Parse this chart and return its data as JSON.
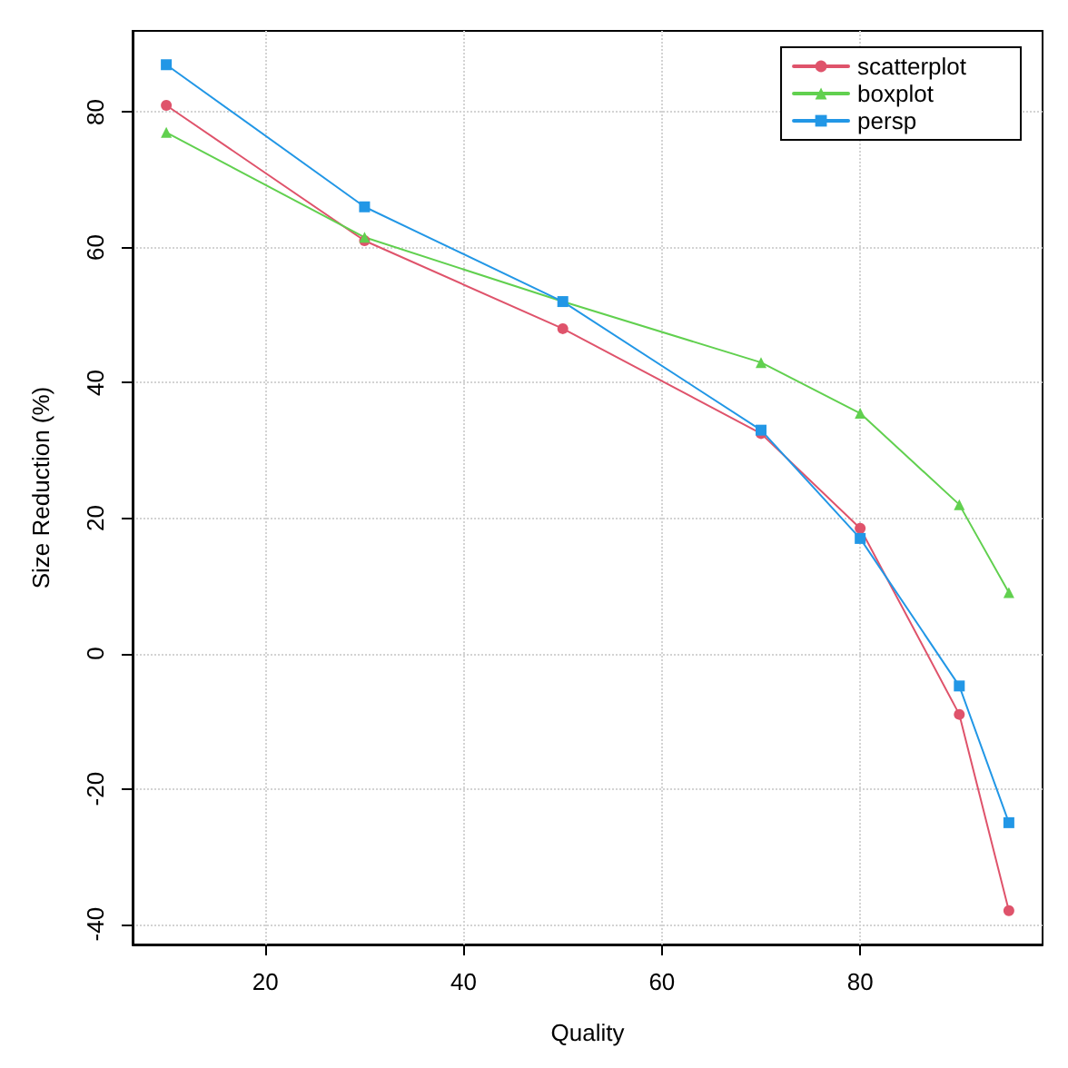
{
  "chart_data": {
    "type": "line",
    "xlabel": "Quality",
    "ylabel": "Size Reduction (%)",
    "xlim": [
      6.6,
      98.4
    ],
    "xticks": [
      20,
      40,
      60,
      80
    ],
    "ylim": [
      -43,
      92
    ],
    "yticks": [
      -40,
      -20,
      0,
      20,
      40,
      60,
      80
    ],
    "grid": true,
    "legend": "top right",
    "line_style": "solid",
    "series": [
      {
        "name": "scatterplot",
        "color": "#df536b",
        "marker": "circle",
        "x": [
          10,
          30,
          50,
          70,
          80,
          90,
          95
        ],
        "values": [
          81,
          61,
          48,
          32.5,
          18.5,
          -9,
          -38
        ]
      },
      {
        "name": "boxplot",
        "color": "#61d04f",
        "marker": "triangle",
        "x": [
          10,
          30,
          50,
          70,
          80,
          90,
          95
        ],
        "values": [
          77,
          61.5,
          52,
          43,
          35.5,
          22,
          9
        ]
      },
      {
        "name": "persp",
        "color": "#2297e6",
        "marker": "square",
        "x": [
          10,
          30,
          50,
          70,
          80,
          90,
          95
        ],
        "values": [
          87,
          66,
          52,
          33,
          17,
          -4.8,
          -25
        ]
      }
    ]
  }
}
